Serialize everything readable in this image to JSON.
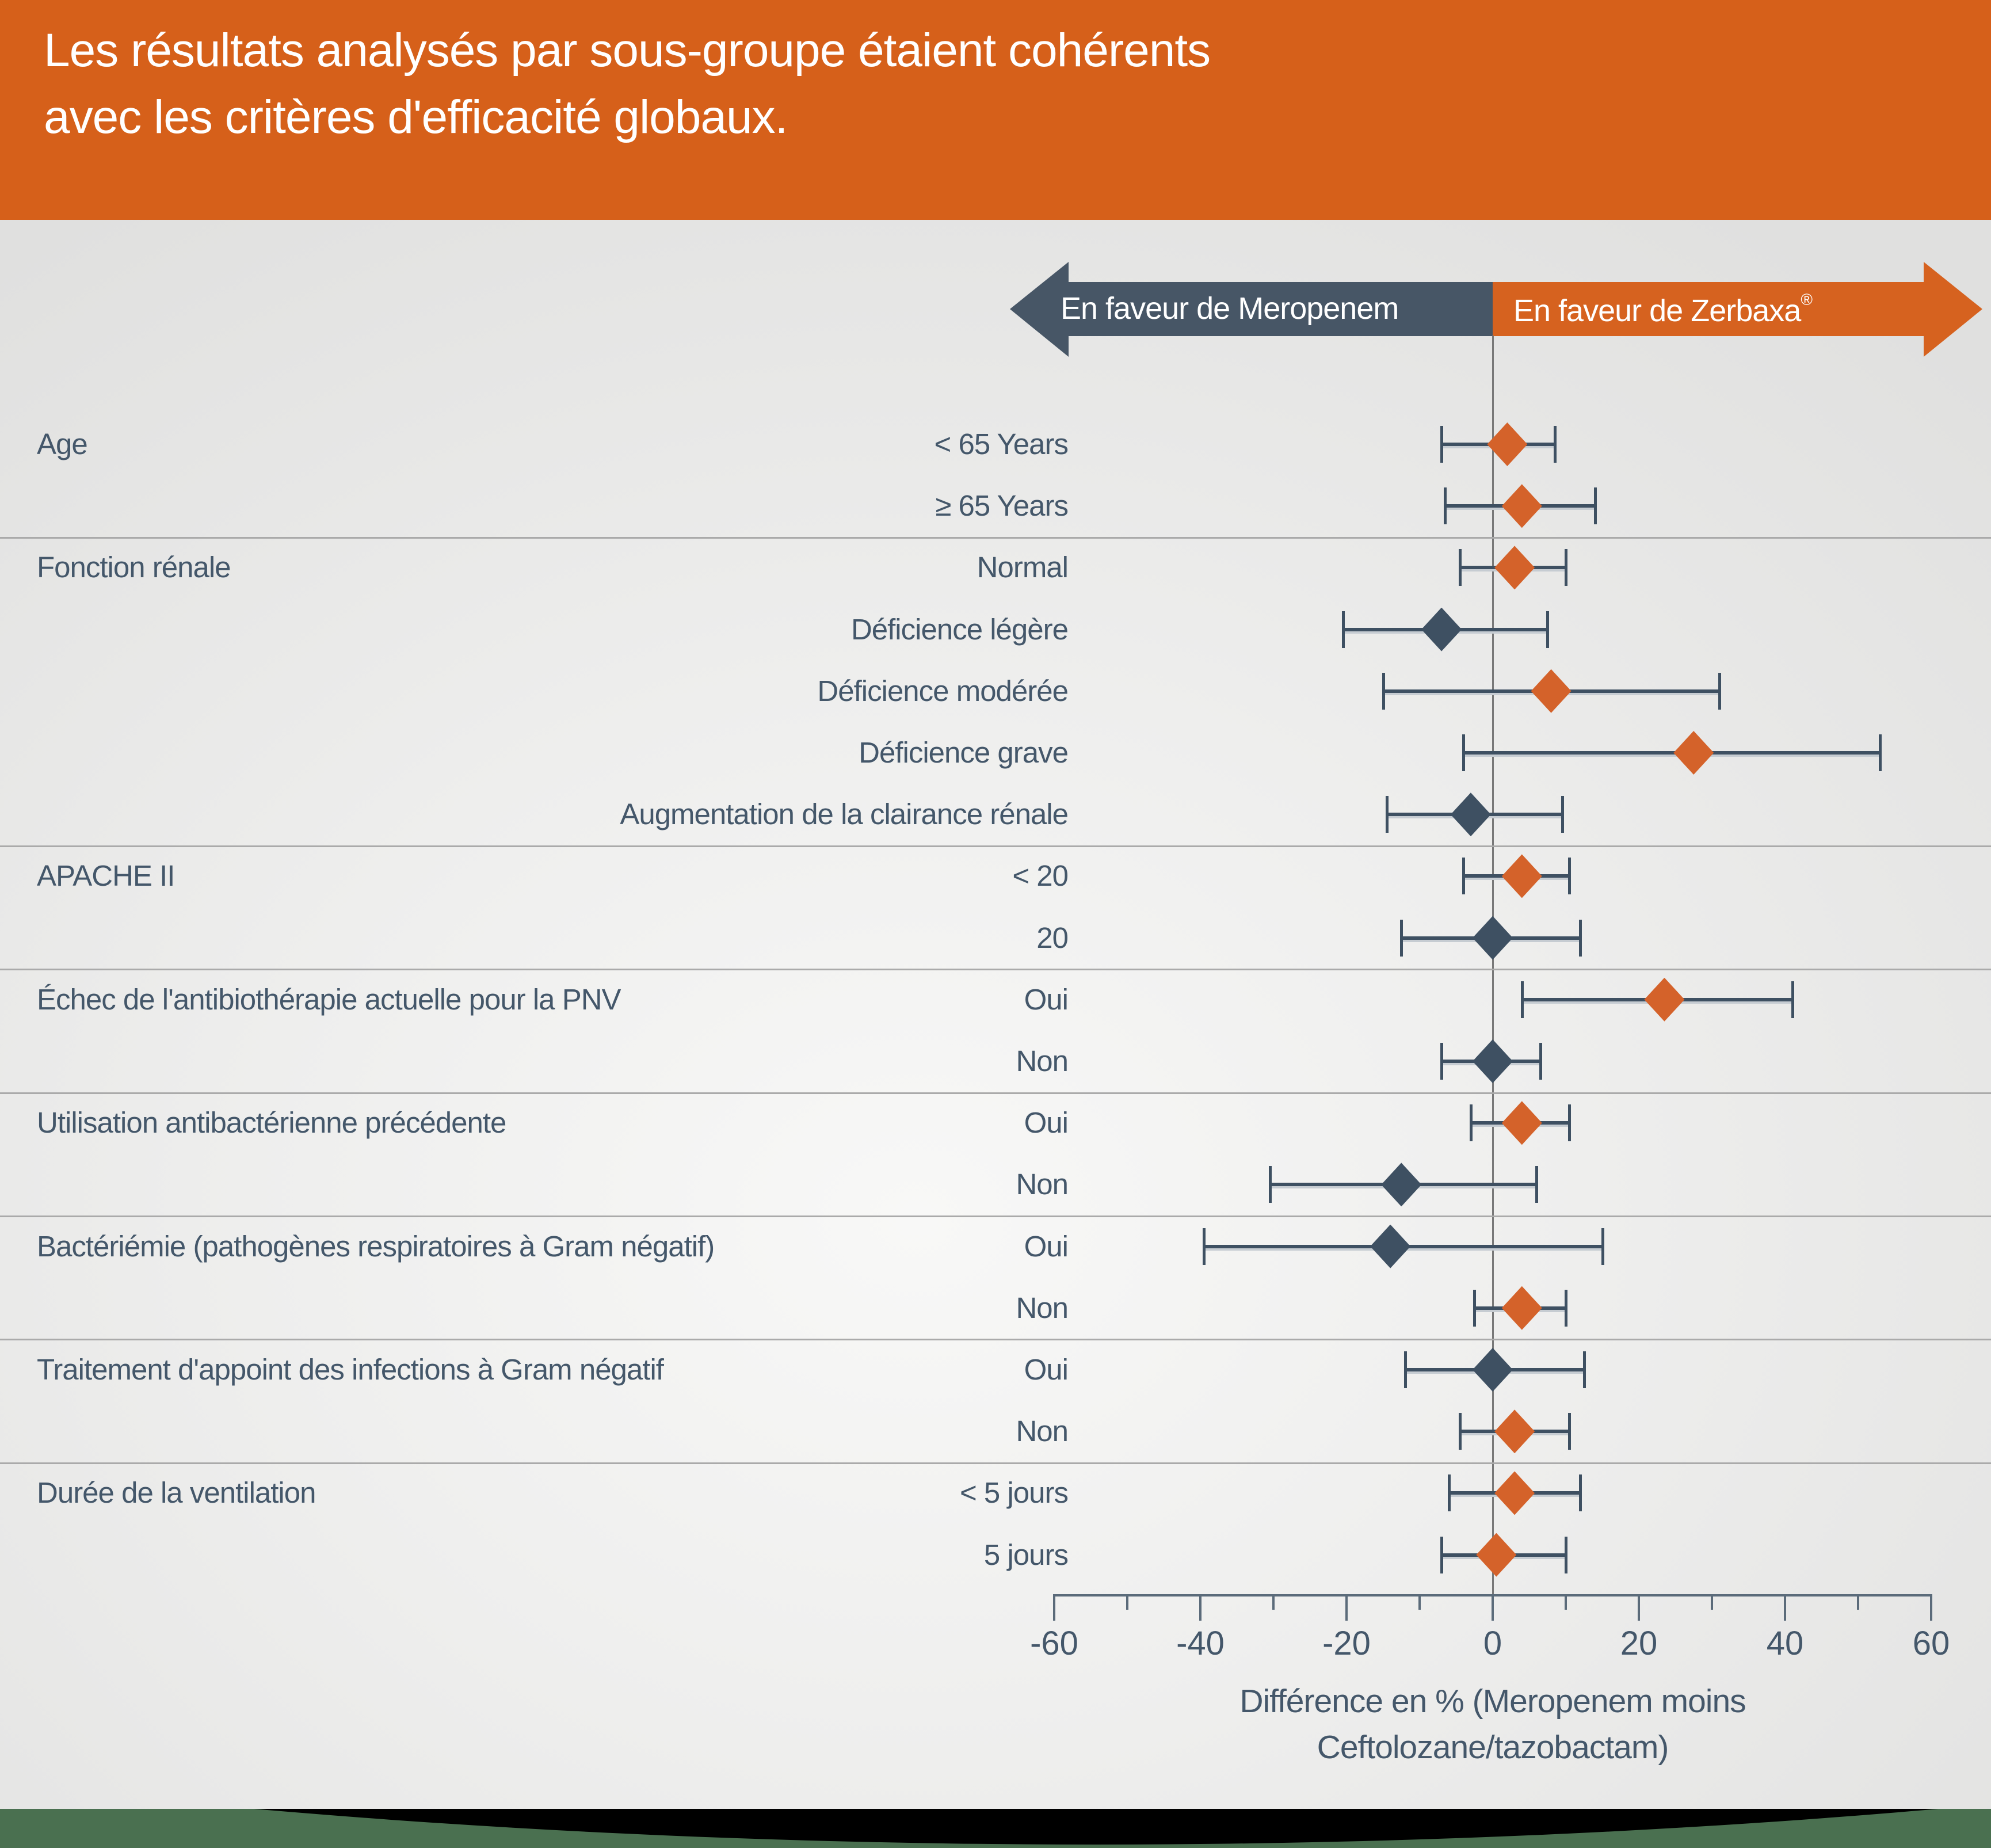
{
  "header": {
    "title_line1": "Les résultats analysés par sous-groupe étaient cohérents",
    "title_line2": "avec les critères d'efficacité globaux."
  },
  "legend": {
    "left_label": "En faveur de Meropenem",
    "right_label": "En faveur de Zerbaxa",
    "right_label_mark": "®"
  },
  "colors": {
    "header_orange": "#d6601a",
    "arrow_orange": "#d6621f",
    "arrow_navy": "#475666",
    "diamond_orange": "#d4622a",
    "diamond_navy": "#3e5062",
    "text_slate": "#44576a",
    "band_green": "#4a7050",
    "band_black": "#000000"
  },
  "chart_data": {
    "type": "forest",
    "title": "Les résultats analysés par sous-groupe étaient cohérents avec les critères d'efficacité globaux.",
    "xlabel_line1": "Différence en % (Meropenem moins",
    "xlabel_line2": "Ceftolozane/tazobactam)",
    "xlim": [
      -60,
      60
    ],
    "axis": {
      "major_ticks": [
        -60,
        -40,
        -20,
        0,
        20,
        40,
        60
      ],
      "major_tick_labels": [
        "-60",
        "-40",
        "-20",
        "0",
        "20",
        "40",
        "60"
      ],
      "minor_ticks": [
        -50,
        -30,
        -10,
        10,
        30,
        50
      ]
    },
    "rows": [
      {
        "group": "Age",
        "label": "< 65 Years",
        "value": 2,
        "lo": -7,
        "hi": 8.5,
        "favors": "zerbaxa"
      },
      {
        "label": "≥ 65 Years",
        "value": 4,
        "lo": -6.5,
        "hi": 14,
        "favors": "zerbaxa"
      },
      {
        "group": "Fonction rénale",
        "label": "Normal",
        "value": 3,
        "lo": -4.5,
        "hi": 10,
        "favors": "zerbaxa"
      },
      {
        "label": "Déficience légère",
        "value": -7,
        "lo": -20.5,
        "hi": 7.5,
        "favors": "meropenem"
      },
      {
        "label": "Déficience modérée",
        "value": 8,
        "lo": -15,
        "hi": 31,
        "favors": "zerbaxa"
      },
      {
        "label": "Déficience grave",
        "value": 27.5,
        "lo": -4,
        "hi": 53,
        "favors": "zerbaxa"
      },
      {
        "label": "Augmentation de la clairance rénale",
        "value": -3,
        "lo": -14.5,
        "hi": 9.5,
        "favors": "meropenem"
      },
      {
        "group": "APACHE II",
        "label": "< 20",
        "value": 4,
        "lo": -4,
        "hi": 10.5,
        "favors": "zerbaxa"
      },
      {
        "label": "20",
        "value": 0,
        "lo": -12.5,
        "hi": 12,
        "favors": "meropenem"
      },
      {
        "group": "Échec de l'antibiothérapie actuelle pour la PNV",
        "label": "Oui",
        "value": 23.5,
        "lo": 4,
        "hi": 41,
        "favors": "zerbaxa"
      },
      {
        "label": "Non",
        "value": 0,
        "lo": -7,
        "hi": 6.5,
        "favors": "meropenem"
      },
      {
        "group": "Utilisation antibactérienne précédente",
        "label": "Oui",
        "value": 4,
        "lo": -3,
        "hi": 10.5,
        "favors": "zerbaxa"
      },
      {
        "label": "Non",
        "value": -12.5,
        "lo": -30.5,
        "hi": 6,
        "favors": "meropenem"
      },
      {
        "group": "Bactériémie (pathogènes respiratoires à Gram négatif)",
        "label": "Oui",
        "value": -14,
        "lo": -39.5,
        "hi": 15,
        "favors": "meropenem"
      },
      {
        "label": "Non",
        "value": 4,
        "lo": -2.5,
        "hi": 10,
        "favors": "zerbaxa"
      },
      {
        "group": "Traitement d'appoint des infections à Gram négatif",
        "label": "Oui",
        "value": 0,
        "lo": -12,
        "hi": 12.5,
        "favors": "meropenem"
      },
      {
        "label": "Non",
        "value": 3,
        "lo": -4.5,
        "hi": 10.5,
        "favors": "zerbaxa"
      },
      {
        "group": "Durée de la ventilation",
        "label": "< 5 jours",
        "value": 3,
        "lo": -6,
        "hi": 12,
        "favors": "zerbaxa"
      },
      {
        "label": "5 jours",
        "value": 0.5,
        "lo": -7,
        "hi": 10,
        "favors": "zerbaxa"
      }
    ]
  }
}
